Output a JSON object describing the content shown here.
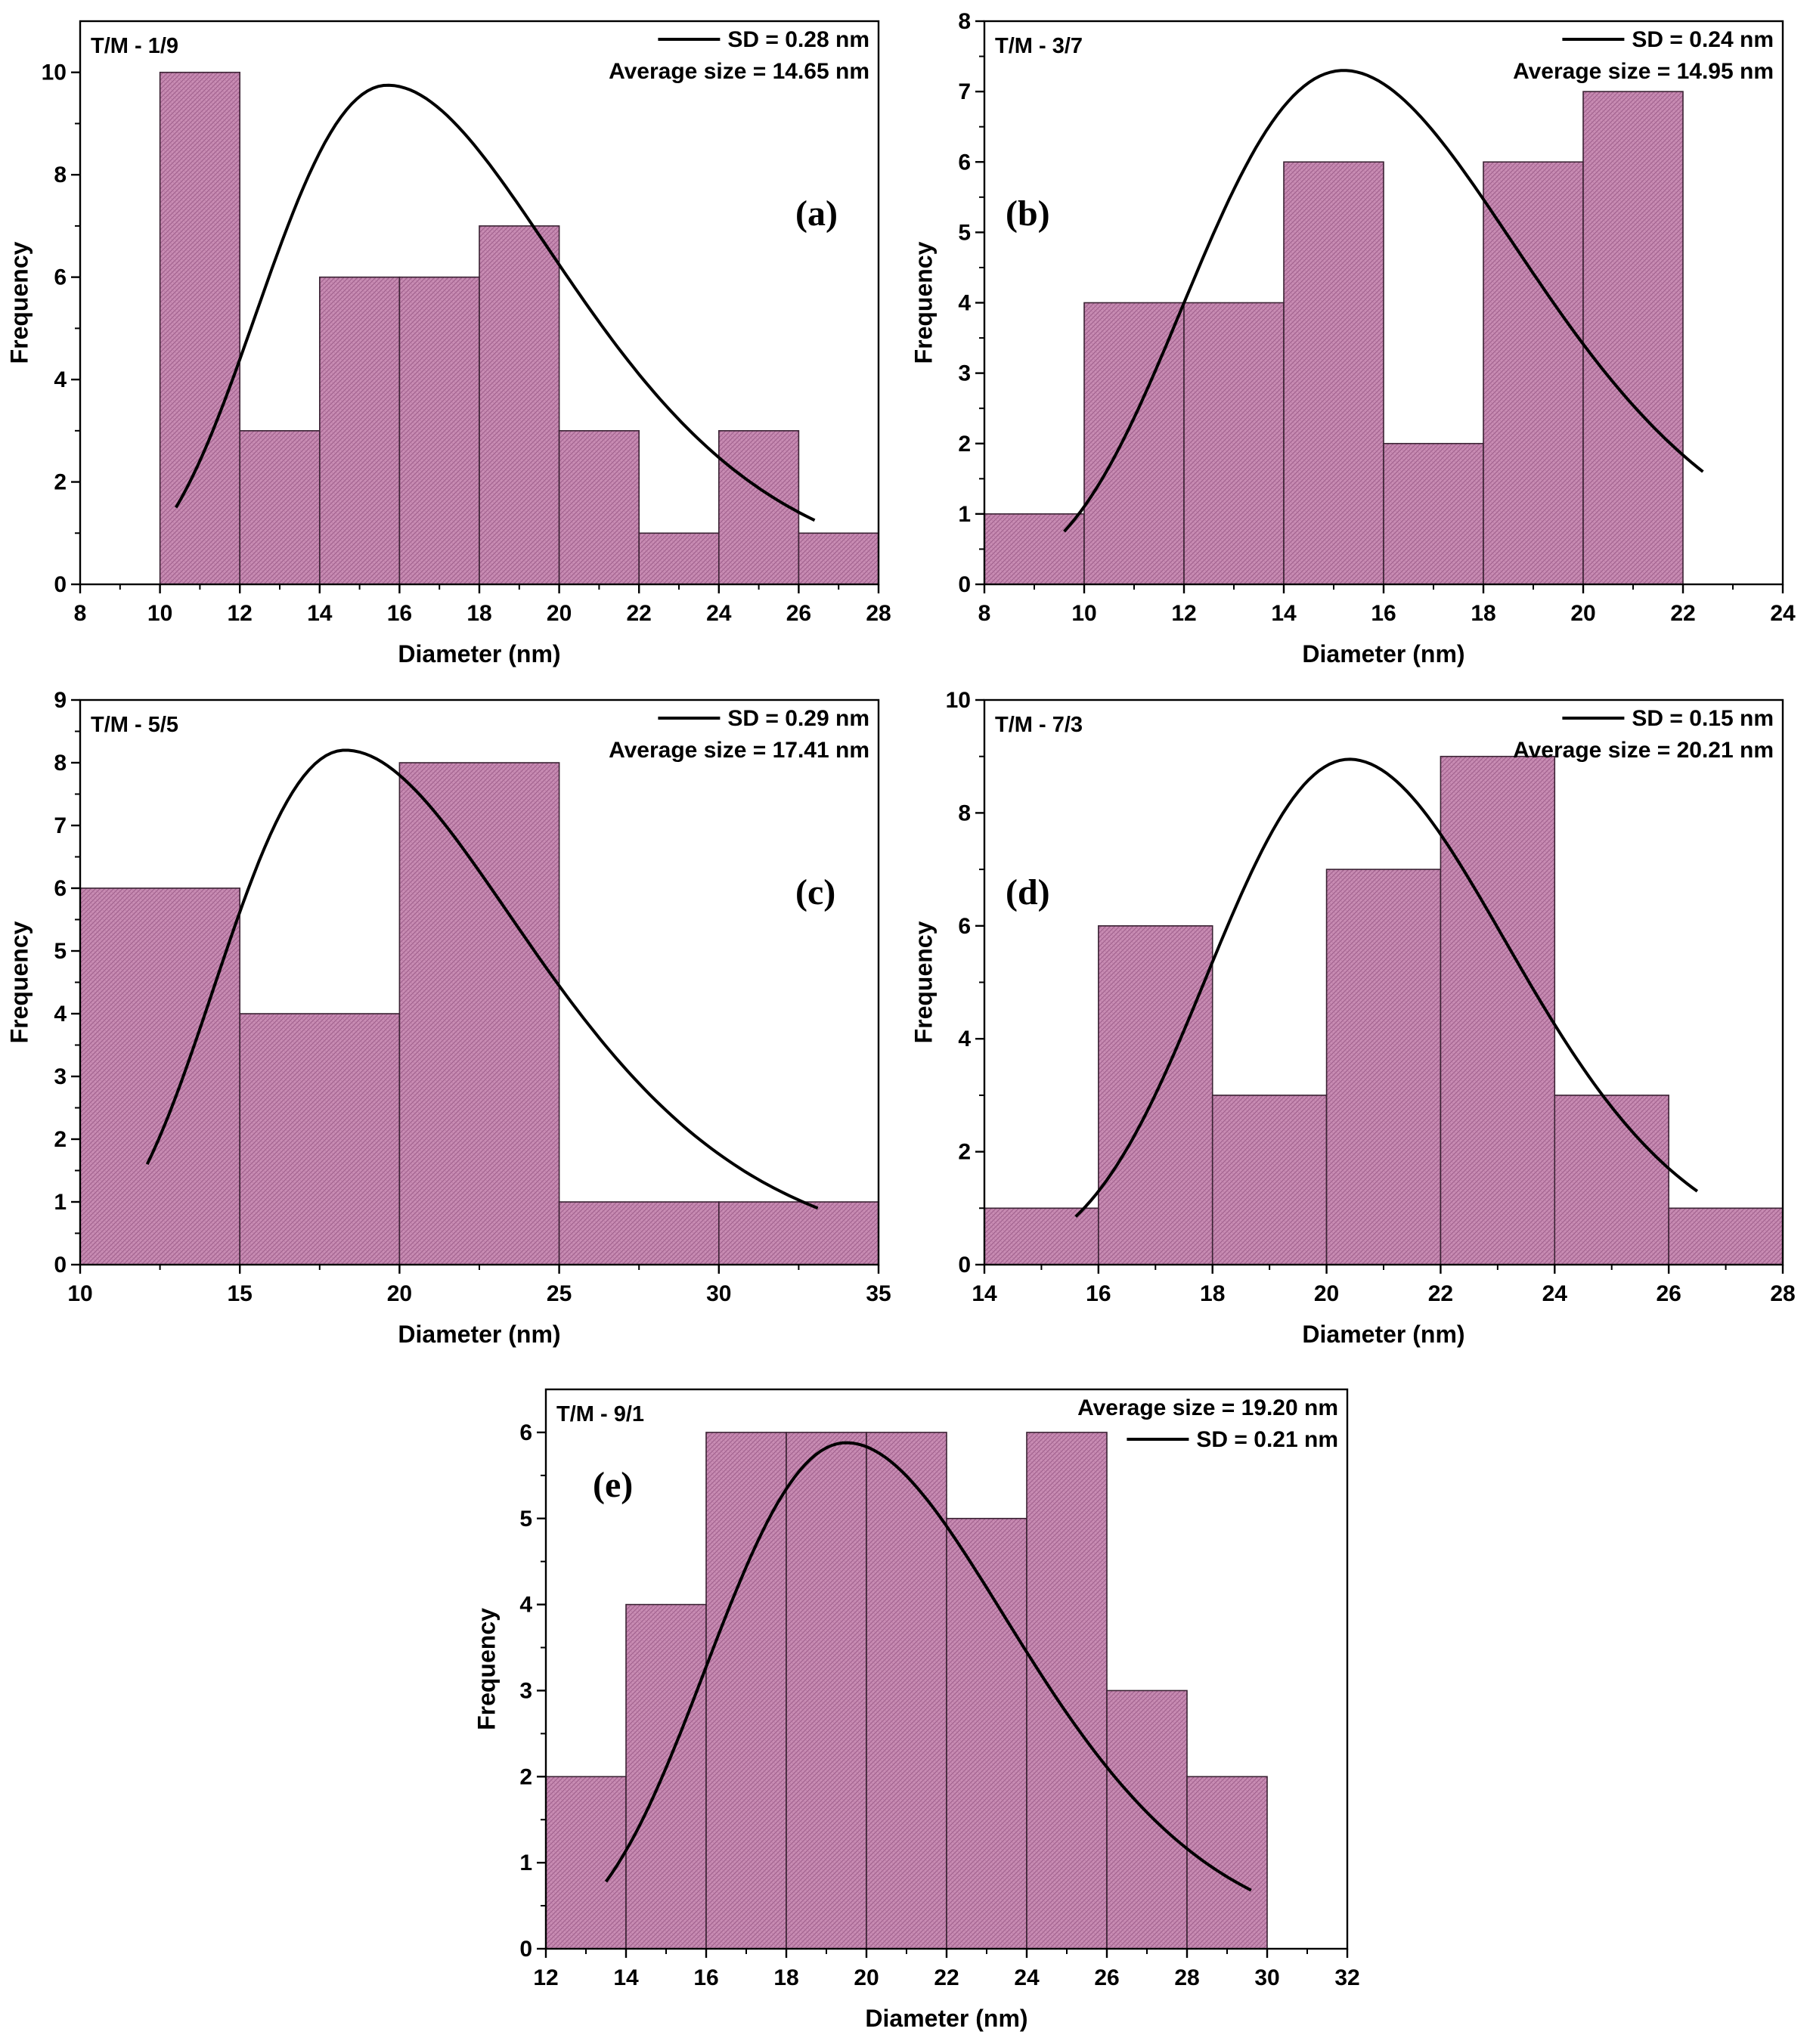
{
  "figure": {
    "charts": [
      {
        "id": "a",
        "panel_label": "(a)",
        "sample_label": "T/M - 1/9",
        "legend": {
          "line_label": "SD = 0.28 nm",
          "average_label": "Average size = 14.65 nm",
          "line_first": true
        },
        "type": "histogram",
        "xlabel": "Diameter (nm)",
        "ylabel": "Frequency",
        "xlim": [
          8,
          28
        ],
        "ylim": [
          0,
          11
        ],
        "xticks": [
          8,
          10,
          12,
          14,
          16,
          18,
          20,
          22,
          24,
          26,
          28
        ],
        "yticks": [
          0,
          2,
          4,
          6,
          8,
          10
        ],
        "bins": [
          {
            "x0": 10,
            "x1": 12,
            "count": 10
          },
          {
            "x0": 12,
            "x1": 14,
            "count": 3
          },
          {
            "x0": 14,
            "x1": 16,
            "count": 6
          },
          {
            "x0": 16,
            "x1": 18,
            "count": 6
          },
          {
            "x0": 18,
            "x1": 20,
            "count": 7
          },
          {
            "x0": 20,
            "x1": 22,
            "count": 3
          },
          {
            "x0": 22,
            "x1": 24,
            "count": 1
          },
          {
            "x0": 24,
            "x1": 26,
            "count": 3
          },
          {
            "x0": 26,
            "x1": 28,
            "count": 1
          }
        ],
        "fit": {
          "type": "lognormal",
          "peak_x": 15.7,
          "peak_y": 9.75,
          "x_start": 10.4,
          "x_end": 26.4,
          "y_start": 1.5,
          "y_end": 1.25
        }
      },
      {
        "id": "b",
        "panel_label": "(b)",
        "sample_label": "T/M - 3/7",
        "legend": {
          "line_label": "SD = 0.24 nm",
          "average_label": "Average size = 14.95 nm",
          "line_first": true
        },
        "type": "histogram",
        "xlabel": "Diameter (nm)",
        "ylabel": "Frequency",
        "xlim": [
          8,
          24
        ],
        "ylim": [
          0,
          8
        ],
        "xticks": [
          8,
          10,
          12,
          14,
          16,
          18,
          20,
          22,
          24
        ],
        "yticks": [
          0,
          1,
          2,
          3,
          4,
          5,
          6,
          7,
          8
        ],
        "bins": [
          {
            "x0": 8,
            "x1": 10,
            "count": 1
          },
          {
            "x0": 10,
            "x1": 12,
            "count": 4
          },
          {
            "x0": 12,
            "x1": 14,
            "count": 4
          },
          {
            "x0": 14,
            "x1": 16,
            "count": 6
          },
          {
            "x0": 16,
            "x1": 18,
            "count": 2
          },
          {
            "x0": 18,
            "x1": 20,
            "count": 6
          },
          {
            "x0": 20,
            "x1": 22,
            "count": 7
          }
        ],
        "fit": {
          "type": "lognormal",
          "peak_x": 15.2,
          "peak_y": 7.3,
          "x_start": 9.6,
          "x_end": 22.4,
          "y_start": 0.75,
          "y_end": 1.6
        }
      },
      {
        "id": "c",
        "panel_label": "(c)",
        "sample_label": "T/M - 5/5",
        "legend": {
          "line_label": "SD = 0.29 nm",
          "average_label": "Average size = 17.41 nm",
          "line_first": true
        },
        "type": "histogram",
        "xlabel": "Diameter (nm)",
        "ylabel": "Frequency",
        "xlim": [
          10,
          35
        ],
        "ylim": [
          0,
          9
        ],
        "xticks": [
          10,
          15,
          20,
          25,
          30,
          35
        ],
        "yticks": [
          0,
          1,
          2,
          3,
          4,
          5,
          6,
          7,
          8,
          9
        ],
        "bins": [
          {
            "x0": 10,
            "x1": 15,
            "count": 6
          },
          {
            "x0": 15,
            "x1": 20,
            "count": 4
          },
          {
            "x0": 20,
            "x1": 25,
            "count": 8
          },
          {
            "x0": 25,
            "x1": 30,
            "count": 1
          },
          {
            "x0": 30,
            "x1": 35,
            "count": 1
          }
        ],
        "fit": {
          "type": "lognormal",
          "peak_x": 18.3,
          "peak_y": 8.2,
          "x_start": 12.1,
          "x_end": 33.1,
          "y_start": 1.6,
          "y_end": 0.9
        }
      },
      {
        "id": "d",
        "panel_label": "(d)",
        "sample_label": "T/M - 7/3",
        "legend": {
          "line_label": "SD = 0.15 nm",
          "average_label": "Average size = 20.21 nm",
          "line_first": true
        },
        "type": "histogram",
        "xlabel": "Diameter (nm)",
        "ylabel": "Frequency",
        "xlim": [
          14,
          28
        ],
        "ylim": [
          0,
          10
        ],
        "xticks": [
          14,
          16,
          18,
          20,
          22,
          24,
          26,
          28
        ],
        "yticks": [
          0,
          2,
          4,
          6,
          8,
          10
        ],
        "bins": [
          {
            "x0": 14,
            "x1": 16,
            "count": 1
          },
          {
            "x0": 16,
            "x1": 18,
            "count": 6
          },
          {
            "x0": 18,
            "x1": 20,
            "count": 3
          },
          {
            "x0": 20,
            "x1": 22,
            "count": 7
          },
          {
            "x0": 22,
            "x1": 24,
            "count": 9
          },
          {
            "x0": 24,
            "x1": 26,
            "count": 3
          },
          {
            "x0": 26,
            "x1": 28,
            "count": 1
          }
        ],
        "fit": {
          "type": "lognormal",
          "peak_x": 20.4,
          "peak_y": 8.95,
          "x_start": 15.6,
          "x_end": 26.5,
          "y_start": 0.85,
          "y_end": 1.3
        }
      },
      {
        "id": "e",
        "panel_label": "(e)",
        "sample_label": "T/M - 9/1",
        "legend": {
          "line_label": "SD = 0.21 nm",
          "average_label": "Average size  = 19.20 nm",
          "line_first": false
        },
        "type": "histogram",
        "xlabel": "Diameter (nm)",
        "ylabel": "Frequency",
        "xlim": [
          12,
          32
        ],
        "ylim": [
          0,
          6.5
        ],
        "xticks": [
          12,
          14,
          16,
          18,
          20,
          22,
          24,
          26,
          28,
          30,
          32
        ],
        "yticks": [
          0,
          1,
          2,
          3,
          4,
          5,
          6
        ],
        "bins": [
          {
            "x0": 12,
            "x1": 14,
            "count": 2
          },
          {
            "x0": 14,
            "x1": 16,
            "count": 4
          },
          {
            "x0": 16,
            "x1": 18,
            "count": 6
          },
          {
            "x0": 18,
            "x1": 20,
            "count": 6
          },
          {
            "x0": 20,
            "x1": 22,
            "count": 6
          },
          {
            "x0": 22,
            "x1": 24,
            "count": 5
          },
          {
            "x0": 24,
            "x1": 26,
            "count": 6
          },
          {
            "x0": 26,
            "x1": 28,
            "count": 3
          },
          {
            "x0": 28,
            "x1": 30,
            "count": 2
          }
        ],
        "fit": {
          "type": "lognormal",
          "peak_x": 19.5,
          "peak_y": 5.88,
          "x_start": 13.5,
          "x_end": 29.6,
          "y_start": 0.78,
          "y_end": 0.68
        }
      }
    ]
  },
  "chart_data": [
    {
      "type": "bar",
      "title": "T/M - 1/9 (a)",
      "xlabel": "Diameter (nm)",
      "ylabel": "Frequency",
      "categories": [
        "10-12",
        "12-14",
        "14-16",
        "16-18",
        "18-20",
        "20-22",
        "22-24",
        "24-26",
        "26-28"
      ],
      "values": [
        10,
        3,
        6,
        6,
        7,
        3,
        1,
        3,
        1
      ],
      "xlim": [
        8,
        28
      ],
      "ylim": [
        0,
        11
      ],
      "annotations": [
        "SD = 0.28 nm",
        "Average size = 14.65 nm"
      ]
    },
    {
      "type": "bar",
      "title": "T/M - 3/7 (b)",
      "xlabel": "Diameter (nm)",
      "ylabel": "Frequency",
      "categories": [
        "8-10",
        "10-12",
        "12-14",
        "14-16",
        "16-18",
        "18-20",
        "20-22"
      ],
      "values": [
        1,
        4,
        4,
        6,
        2,
        6,
        7
      ],
      "xlim": [
        8,
        24
      ],
      "ylim": [
        0,
        8
      ],
      "annotations": [
        "SD = 0.24 nm",
        "Average size = 14.95 nm"
      ]
    },
    {
      "type": "bar",
      "title": "T/M - 5/5 (c)",
      "xlabel": "Diameter (nm)",
      "ylabel": "Frequency",
      "categories": [
        "10-15",
        "15-20",
        "20-25",
        "25-30",
        "30-35"
      ],
      "values": [
        6,
        4,
        8,
        1,
        1
      ],
      "xlim": [
        10,
        35
      ],
      "ylim": [
        0,
        9
      ],
      "annotations": [
        "SD = 0.29 nm",
        "Average size = 17.41 nm"
      ]
    },
    {
      "type": "bar",
      "title": "T/M - 7/3 (d)",
      "xlabel": "Diameter (nm)",
      "ylabel": "Frequency",
      "categories": [
        "14-16",
        "16-18",
        "18-20",
        "20-22",
        "22-24",
        "24-26",
        "26-28"
      ],
      "values": [
        1,
        6,
        3,
        7,
        9,
        3,
        1
      ],
      "xlim": [
        14,
        28
      ],
      "ylim": [
        0,
        10
      ],
      "annotations": [
        "SD = 0.15 nm",
        "Average size = 20.21 nm"
      ]
    },
    {
      "type": "bar",
      "title": "T/M - 9/1 (e)",
      "xlabel": "Diameter (nm)",
      "ylabel": "Frequency",
      "categories": [
        "12-14",
        "14-16",
        "16-18",
        "18-20",
        "20-22",
        "22-24",
        "24-26",
        "26-28",
        "28-30"
      ],
      "values": [
        2,
        4,
        6,
        6,
        6,
        5,
        6,
        3,
        2
      ],
      "xlim": [
        12,
        32
      ],
      "ylim": [
        0,
        6.5
      ],
      "annotations": [
        "Average size  = 19.20 nm",
        "SD = 0.21 nm"
      ]
    }
  ],
  "style": {
    "bar_fill": "#c98db4",
    "bar_hatch": "#a0618d",
    "bar_edge": "#3a2233",
    "axis_color": "#000000",
    "fit_color": "#000000"
  }
}
